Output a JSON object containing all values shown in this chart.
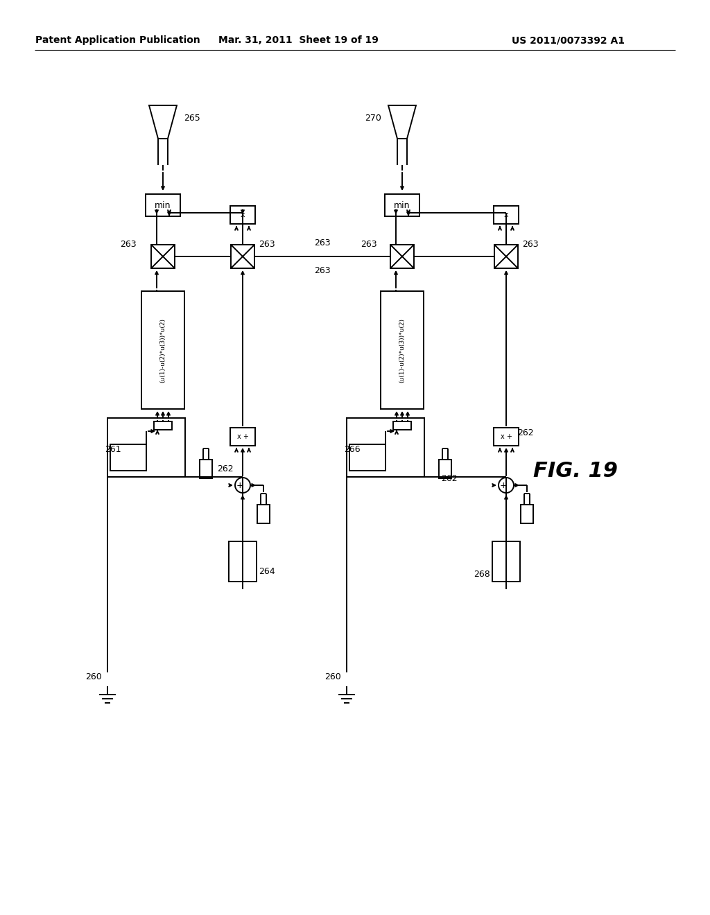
{
  "background": "#ffffff",
  "header_left": "Patent Application Publication",
  "header_mid": "Mar. 31, 2011  Sheet 19 of 19",
  "header_right": "US 2011/0073392 A1",
  "fig_label": "FIG. 19"
}
